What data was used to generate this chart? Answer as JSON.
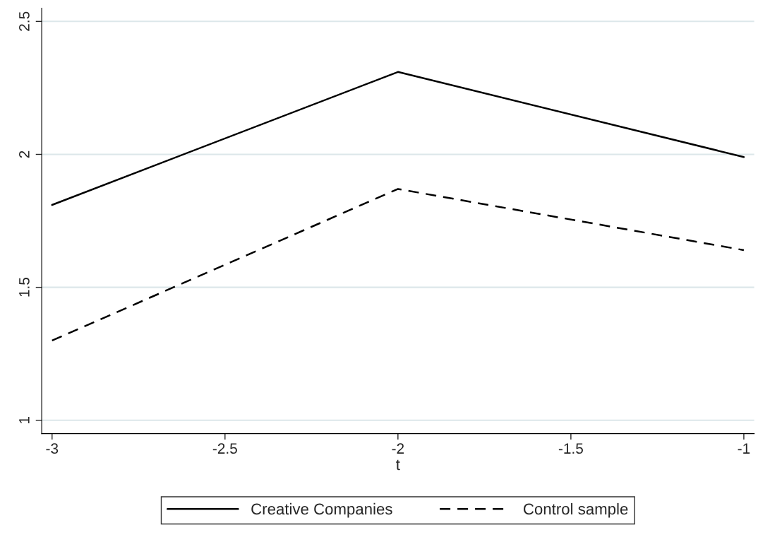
{
  "chart_data": {
    "type": "line",
    "xlabel": "t",
    "x": [
      -3,
      -2,
      -1
    ],
    "series": [
      {
        "name": "Creative Companies",
        "color": "#000000",
        "line_style": "solid",
        "values": [
          1.81,
          2.31,
          1.99
        ]
      },
      {
        "name": "Control sample",
        "color": "#000000",
        "line_style": "dashed",
        "values": [
          1.3,
          1.87,
          1.64
        ]
      }
    ],
    "xlim": [
      -3.03,
      -0.97
    ],
    "xticks": [
      -3,
      -2.5,
      -2,
      -1.5,
      -1
    ],
    "ylim": [
      0.95,
      2.55
    ],
    "yticks": [
      1,
      1.5,
      2,
      2.5
    ],
    "grid": "y",
    "legend": "bottom",
    "marker": "none"
  }
}
